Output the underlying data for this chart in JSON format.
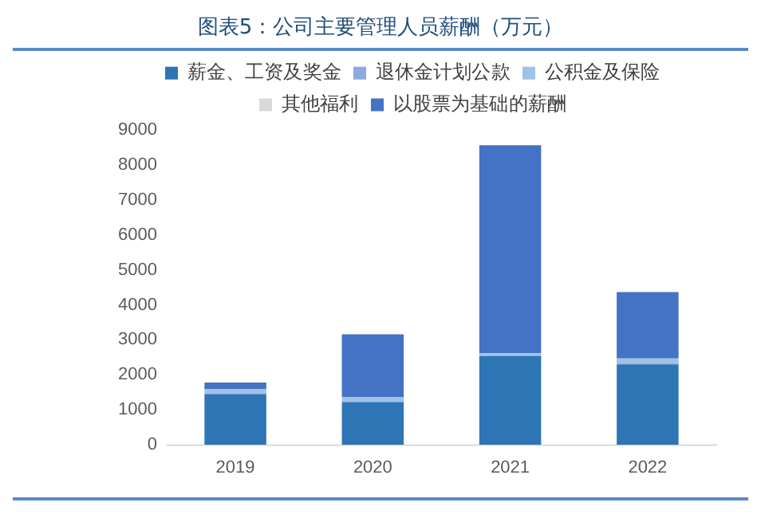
{
  "chart_data": {
    "type": "bar",
    "title": "图表5：公司主要管理人员薪酬（万元）",
    "categories": [
      "2019",
      "2020",
      "2021",
      "2022"
    ],
    "stacked": true,
    "series": [
      {
        "name": "薪金、工资及奖金",
        "color": "#2e75b6",
        "values": [
          1450,
          1220,
          2540,
          2300
        ]
      },
      {
        "name": "退休金计划公款",
        "color": "#8faadc",
        "values": [
          30,
          30,
          20,
          30
        ]
      },
      {
        "name": "公积金及保险",
        "color": "#9dc3e6",
        "values": [
          120,
          120,
          60,
          140
        ]
      },
      {
        "name": "其他福利",
        "color": "#d9d9d9",
        "values": [
          null,
          null,
          null,
          null
        ]
      },
      {
        "name": "以股票为基础的薪酬",
        "color": "#4472c4",
        "values": [
          180,
          1790,
          5950,
          1900
        ]
      }
    ],
    "ylim": [
      0,
      9000
    ],
    "yticks": [
      0,
      1000,
      2000,
      3000,
      4000,
      5000,
      6000,
      7000,
      8000,
      9000
    ],
    "grid": false,
    "legend": "top"
  }
}
